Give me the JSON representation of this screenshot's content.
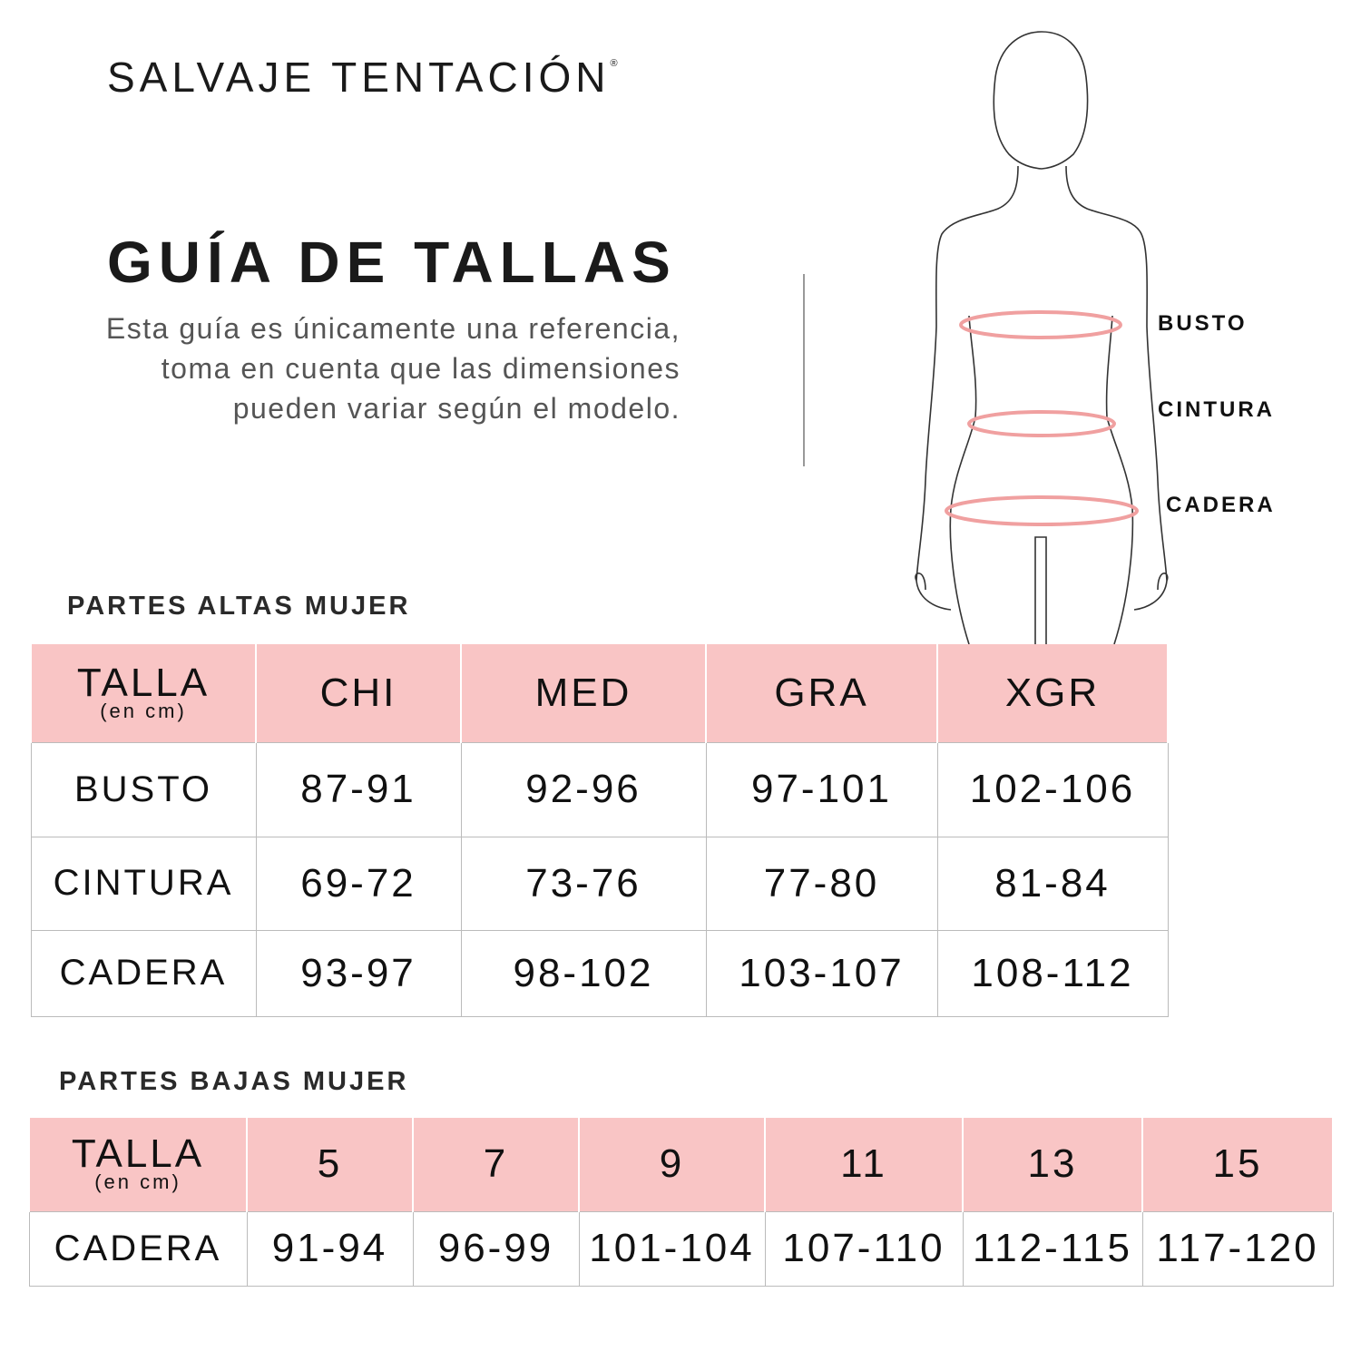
{
  "brand": {
    "name": "SALVAJE TENTACIÓN",
    "mark": "®"
  },
  "title": "GUÍA DE TALLAS",
  "description": "Esta guía es únicamente una referencia, toma en cuenta que las dimensiones pueden variar según el modelo.",
  "figure": {
    "labels": [
      "BUSTO",
      "CINTURA",
      "CADERA"
    ],
    "measure_color": "#f0a0a0"
  },
  "colors": {
    "header_bg": "#f9c5c5",
    "text": "#111111"
  },
  "tops": {
    "section_title": "PARTES ALTAS MUJER",
    "corner": {
      "label": "TALLA",
      "unit": "(en cm)"
    },
    "columns": [
      "CHI",
      "MED",
      "GRA",
      "XGR"
    ],
    "rows": [
      {
        "label": "BUSTO",
        "values": [
          "87-91",
          "92-96",
          "97-101",
          "102-106"
        ]
      },
      {
        "label": "CINTURA",
        "values": [
          "69-72",
          "73-76",
          "77-80",
          "81-84"
        ]
      },
      {
        "label": "CADERA",
        "values": [
          "93-97",
          "98-102",
          "103-107",
          "108-112"
        ]
      }
    ]
  },
  "bottoms": {
    "section_title": "PARTES BAJAS MUJER",
    "corner": {
      "label": "TALLA",
      "unit": "(en cm)"
    },
    "columns": [
      "5",
      "7",
      "9",
      "11",
      "13",
      "15"
    ],
    "rows": [
      {
        "label": "CADERA",
        "values": [
          "91-94",
          "96-99",
          "101-104",
          "107-110",
          "112-115",
          "117-120"
        ]
      }
    ]
  }
}
